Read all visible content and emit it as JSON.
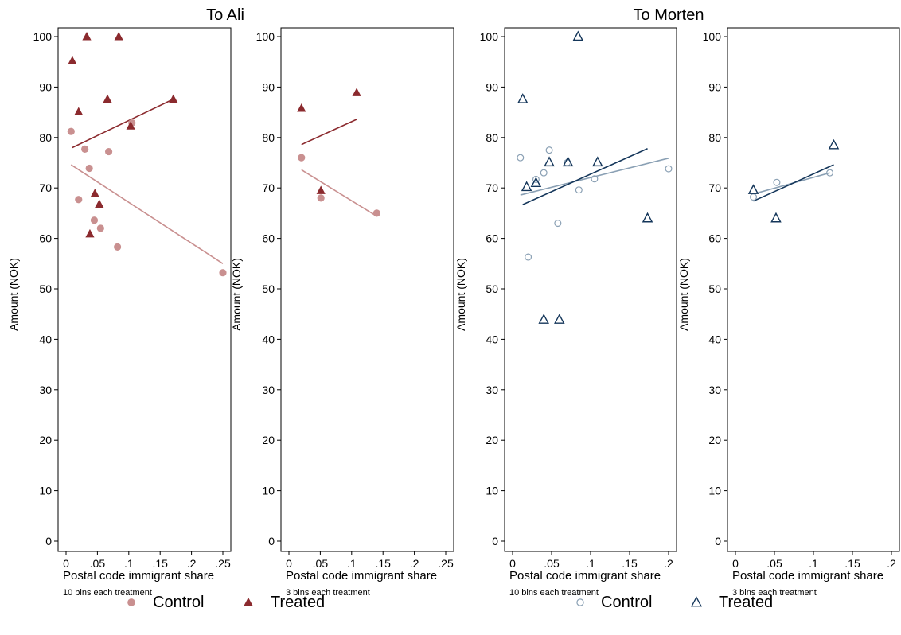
{
  "groups": [
    {
      "title": "To Ali",
      "legend": {
        "control": "Control",
        "treated": "Treated"
      },
      "colors": {
        "control": "#c99090",
        "treated": "#8b2a2e"
      },
      "marker_style": "solid"
    },
    {
      "title": "To Morten",
      "legend": {
        "control": "Control",
        "treated": "Treated"
      },
      "colors": {
        "control": "#8aa0b4",
        "treated": "#14365a"
      },
      "marker_style": "hollow"
    }
  ],
  "chart_data": [
    {
      "type": "scatter",
      "group": "To Ali",
      "xlabel": "Postal code immigrant share",
      "note": "10 bins each treatment",
      "ylabel": "Amount (NOK)",
      "xlim": [
        0,
        0.25
      ],
      "ylim": [
        0,
        100
      ],
      "xticks": [
        0,
        0.05,
        0.1,
        0.15,
        0.2,
        0.25
      ],
      "xtick_labels": [
        "0",
        ".05",
        ".1",
        ".15",
        ".2",
        ".25"
      ],
      "yticks": [
        0,
        10,
        20,
        30,
        40,
        50,
        60,
        70,
        80,
        90,
        100
      ],
      "series": [
        {
          "name": "Control",
          "points": [
            [
              0.008,
              81.2
            ],
            [
              0.02,
              67.7
            ],
            [
              0.03,
              77.7
            ],
            [
              0.037,
              73.9
            ],
            [
              0.045,
              63.6
            ],
            [
              0.055,
              62.0
            ],
            [
              0.068,
              77.2
            ],
            [
              0.082,
              58.3
            ],
            [
              0.105,
              82.9
            ],
            [
              0.25,
              53.2
            ]
          ],
          "fit": [
            [
              0.008,
              74.6
            ],
            [
              0.25,
              55.0
            ]
          ]
        },
        {
          "name": "Treated",
          "points": [
            [
              0.01,
              95.2
            ],
            [
              0.02,
              85.1
            ],
            [
              0.033,
              100.0
            ],
            [
              0.038,
              60.9
            ],
            [
              0.046,
              68.9
            ],
            [
              0.053,
              66.8
            ],
            [
              0.066,
              87.6
            ],
            [
              0.084,
              100.0
            ],
            [
              0.103,
              82.3
            ],
            [
              0.171,
              87.6
            ]
          ],
          "fit": [
            [
              0.01,
              78.0
            ],
            [
              0.171,
              87.6
            ]
          ]
        }
      ]
    },
    {
      "type": "scatter",
      "group": "To Ali",
      "xlabel": "Postal code immigrant share",
      "note": "3 bins each treatment",
      "ylabel": "Amount (NOK)",
      "xlim": [
        0,
        0.25
      ],
      "ylim": [
        0,
        100
      ],
      "xticks": [
        0,
        0.05,
        0.1,
        0.15,
        0.2,
        0.25
      ],
      "xtick_labels": [
        "0",
        ".05",
        ".1",
        ".15",
        ".2",
        ".25"
      ],
      "yticks": [
        0,
        10,
        20,
        30,
        40,
        50,
        60,
        70,
        80,
        90,
        100
      ],
      "series": [
        {
          "name": "Control",
          "points": [
            [
              0.02,
              76.0
            ],
            [
              0.051,
              68.0
            ],
            [
              0.14,
              65.0
            ]
          ],
          "fit": [
            [
              0.02,
              73.6
            ],
            [
              0.14,
              64.4
            ]
          ]
        },
        {
          "name": "Treated",
          "points": [
            [
              0.02,
              85.8
            ],
            [
              0.051,
              69.5
            ],
            [
              0.108,
              88.9
            ]
          ],
          "fit": [
            [
              0.02,
              78.6
            ],
            [
              0.108,
              83.6
            ]
          ]
        }
      ]
    },
    {
      "type": "scatter",
      "group": "To Morten",
      "xlabel": "Postal code immigrant share",
      "note": "10 bins each treatment",
      "ylabel": "Amount (NOK)",
      "xlim": [
        0,
        0.2
      ],
      "ylim": [
        0,
        100
      ],
      "xticks": [
        0,
        0.05,
        0.1,
        0.15,
        0.2
      ],
      "xtick_labels": [
        "0",
        ".05",
        ".1",
        ".15",
        ".2"
      ],
      "yticks": [
        0,
        10,
        20,
        30,
        40,
        50,
        60,
        70,
        80,
        90,
        100
      ],
      "series": [
        {
          "name": "Control",
          "points": [
            [
              0.01,
              76.0
            ],
            [
              0.02,
              56.3
            ],
            [
              0.03,
              71.7
            ],
            [
              0.04,
              73.0
            ],
            [
              0.047,
              77.5
            ],
            [
              0.058,
              63.0
            ],
            [
              0.07,
              75.0
            ],
            [
              0.085,
              69.6
            ],
            [
              0.105,
              71.8
            ],
            [
              0.2,
              73.8
            ]
          ],
          "fit": [
            [
              0.01,
              68.6
            ],
            [
              0.2,
              75.9
            ]
          ]
        },
        {
          "name": "Treated",
          "points": [
            [
              0.013,
              87.6
            ],
            [
              0.018,
              70.2
            ],
            [
              0.03,
              71.0
            ],
            [
              0.04,
              43.9
            ],
            [
              0.047,
              75.1
            ],
            [
              0.06,
              43.9
            ],
            [
              0.071,
              75.1
            ],
            [
              0.084,
              100.0
            ],
            [
              0.109,
              75.1
            ],
            [
              0.173,
              64.0
            ]
          ],
          "fit": [
            [
              0.013,
              66.7
            ],
            [
              0.173,
              77.8
            ]
          ]
        }
      ]
    },
    {
      "type": "scatter",
      "group": "To Morten",
      "xlabel": "Postal code immigrant share",
      "note": "3 bins each treatment",
      "ylabel": "Amount (NOK)",
      "xlim": [
        0,
        0.2
      ],
      "ylim": [
        0,
        100
      ],
      "xticks": [
        0,
        0.05,
        0.1,
        0.15,
        0.2
      ],
      "xtick_labels": [
        "0",
        ".05",
        ".1",
        ".15",
        ".2"
      ],
      "yticks": [
        0,
        10,
        20,
        30,
        40,
        50,
        60,
        70,
        80,
        90,
        100
      ],
      "series": [
        {
          "name": "Control",
          "points": [
            [
              0.023,
              68.2
            ],
            [
              0.053,
              71.1
            ],
            [
              0.121,
              73.0
            ]
          ],
          "fit": [
            [
              0.023,
              68.8
            ],
            [
              0.121,
              73.0
            ]
          ]
        },
        {
          "name": "Treated",
          "points": [
            [
              0.023,
              69.6
            ],
            [
              0.052,
              64.0
            ],
            [
              0.126,
              78.5
            ]
          ],
          "fit": [
            [
              0.023,
              67.4
            ],
            [
              0.126,
              74.6
            ]
          ]
        }
      ]
    }
  ]
}
